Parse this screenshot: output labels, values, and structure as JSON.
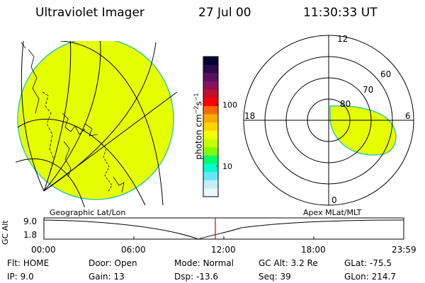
{
  "header": {
    "title": "Ultraviolet Imager",
    "date": "27 Jul 00",
    "time": "11:30:33 UT"
  },
  "left_panel": {
    "caption": "Geographic Lat/Lon",
    "fill_color": "#e6ff00"
  },
  "colorbar": {
    "label": "photon cm^-2 s^-1",
    "ticks": [
      "100",
      "10"
    ],
    "colors": [
      "#000033",
      "#2a0a4a",
      "#5a1060",
      "#8a1060",
      "#c0102a",
      "#ff0000",
      "#ff6a00",
      "#ffaa00",
      "#ffd400",
      "#f5ff00",
      "#c8ff00",
      "#7fff00",
      "#00ff66",
      "#00ffcc",
      "#66e6ff",
      "#bfefff",
      "#e6f7ff"
    ]
  },
  "right_panel": {
    "caption": "Apex MLat/MLT",
    "mlt_labels": {
      "top": "12",
      "left": "18",
      "right": "6",
      "bottom": "0"
    },
    "lat_labels": [
      "60",
      "70",
      "80"
    ],
    "fill_color": "#e6ff00"
  },
  "altitude_plot": {
    "ylabel": "GC Alt",
    "yticks": [
      "9.0",
      "1.8"
    ],
    "xticks": [
      "00:00",
      "06:00",
      "12:00",
      "18:00",
      "23:59"
    ],
    "current_time_marker": "11:30"
  },
  "status": {
    "row1": [
      {
        "label": "Flt:",
        "value": "HOME"
      },
      {
        "label": "Door:",
        "value": "Open"
      },
      {
        "label": "Mode:",
        "value": "Normal"
      },
      {
        "label": "GC Alt:",
        "value": "3.2 Re"
      },
      {
        "label": "GLat:",
        "value": "-75.5"
      }
    ],
    "row2": [
      {
        "label": "IP:",
        "value": "9.0"
      },
      {
        "label": "Gain:",
        "value": "13"
      },
      {
        "label": "Dsp:",
        "value": "-13.6"
      },
      {
        "label": "Seq:",
        "value": "39"
      },
      {
        "label": "GLon:",
        "value": "214.7"
      }
    ]
  }
}
